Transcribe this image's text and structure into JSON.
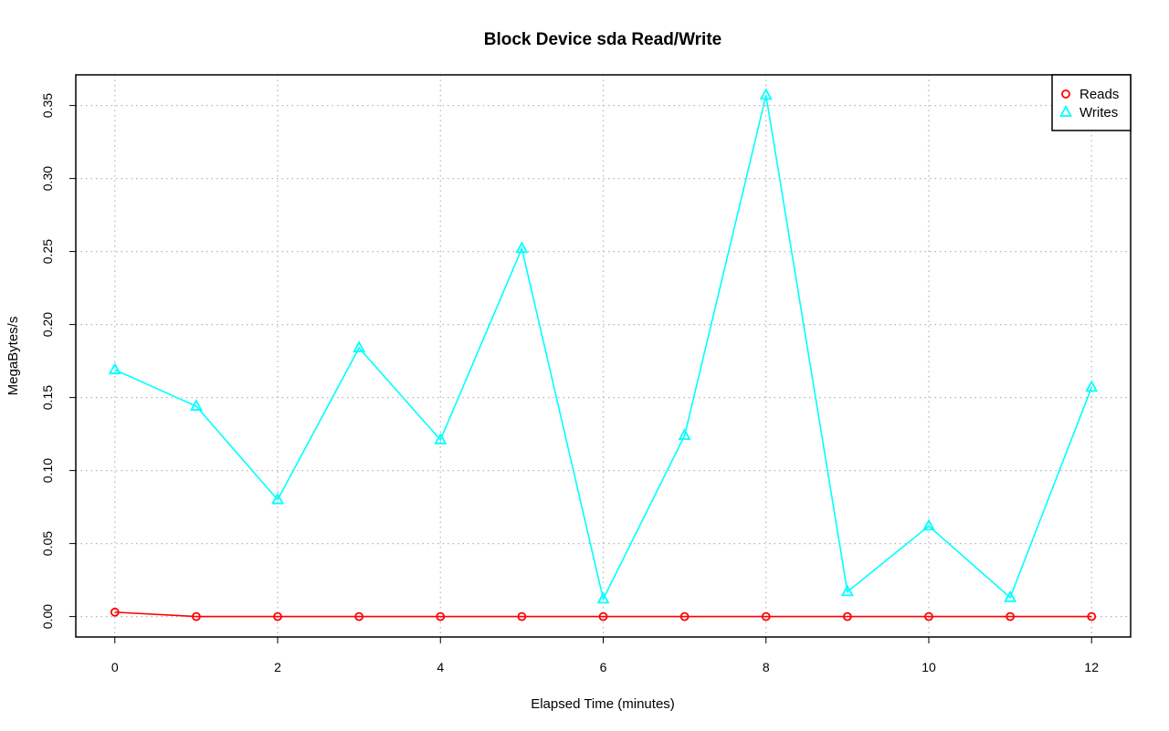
{
  "chart_data": {
    "type": "line",
    "title": "Block Device sda Read/Write",
    "xlabel": "Elapsed Time (minutes)",
    "ylabel": "MegaBytes/s",
    "xlim": [
      -0.48,
      12.48
    ],
    "ylim": [
      -0.014,
      0.371
    ],
    "xticks": [
      0,
      2,
      4,
      6,
      8,
      10,
      12
    ],
    "xtick_labels": [
      "0",
      "2",
      "4",
      "6",
      "8",
      "10",
      "12"
    ],
    "yticks": [
      0.0,
      0.05,
      0.1,
      0.15,
      0.2,
      0.25,
      0.3,
      0.35
    ],
    "ytick_labels": [
      "0.00",
      "0.05",
      "0.10",
      "0.15",
      "0.20",
      "0.25",
      "0.30",
      "0.35"
    ],
    "grid": true,
    "legend_position": "top-right",
    "x": [
      0,
      1,
      2,
      3,
      4,
      5,
      6,
      7,
      8,
      9,
      10,
      11,
      12
    ],
    "series": [
      {
        "name": "Reads",
        "color": "#ff0000",
        "marker": "circle",
        "values": [
          0.003,
          0,
          0,
          0,
          0,
          0,
          0,
          0,
          0,
          0,
          0,
          0,
          0
        ]
      },
      {
        "name": "Writes",
        "color": "#00ffff",
        "marker": "triangle",
        "values": [
          0.169,
          0.144,
          0.08,
          0.184,
          0.121,
          0.252,
          0.012,
          0.124,
          0.357,
          0.017,
          0.062,
          0.013,
          0.157
        ]
      }
    ]
  }
}
